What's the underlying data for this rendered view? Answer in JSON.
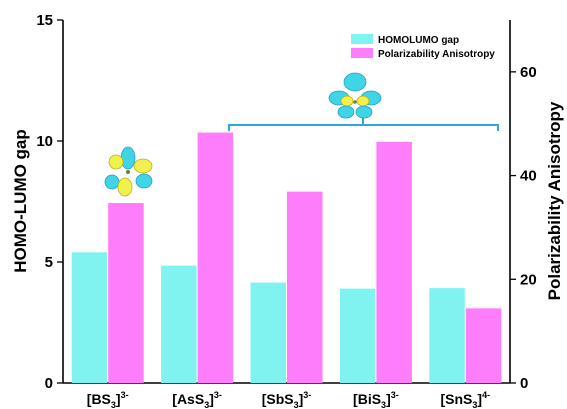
{
  "chart_data": {
    "type": "bar",
    "categories": [
      {
        "base": "[BS",
        "sub": "3",
        "sup": "]3-"
      },
      {
        "base": "[AsS",
        "sub": "3",
        "sup": "]3-"
      },
      {
        "base": "[SbS",
        "sub": "3",
        "sup": "]3-"
      },
      {
        "base": "[BiS",
        "sub": "3",
        "sup": "]3-"
      },
      {
        "base": "[SnS",
        "sub": "3",
        "sup": "]4-"
      }
    ],
    "series": [
      {
        "name": "HOMOLUMO gap",
        "axis": "left",
        "color": "#80f3f1",
        "values": [
          5.4,
          4.85,
          4.15,
          3.9,
          3.92
        ]
      },
      {
        "name": "Polarizability Anisotropy",
        "axis": "right",
        "color": "#fd7dfb",
        "values": [
          34.7,
          48.3,
          36.9,
          46.5,
          14.4
        ]
      }
    ],
    "ylabel": "HOMO-LUMO gap",
    "ylim": [
      0,
      15
    ],
    "yticks": [
      "0",
      "5",
      "10",
      "15"
    ],
    "y2label": "Polarizability Anisotropy",
    "y2lim": [
      0,
      70
    ],
    "y2ticks": [
      "0",
      "20",
      "40",
      "60"
    ],
    "legend_position": "top-right",
    "annotations": [
      "orbital-icon-trigonal-planar",
      "orbital-icon-pyramidal",
      "group-bracket"
    ]
  }
}
